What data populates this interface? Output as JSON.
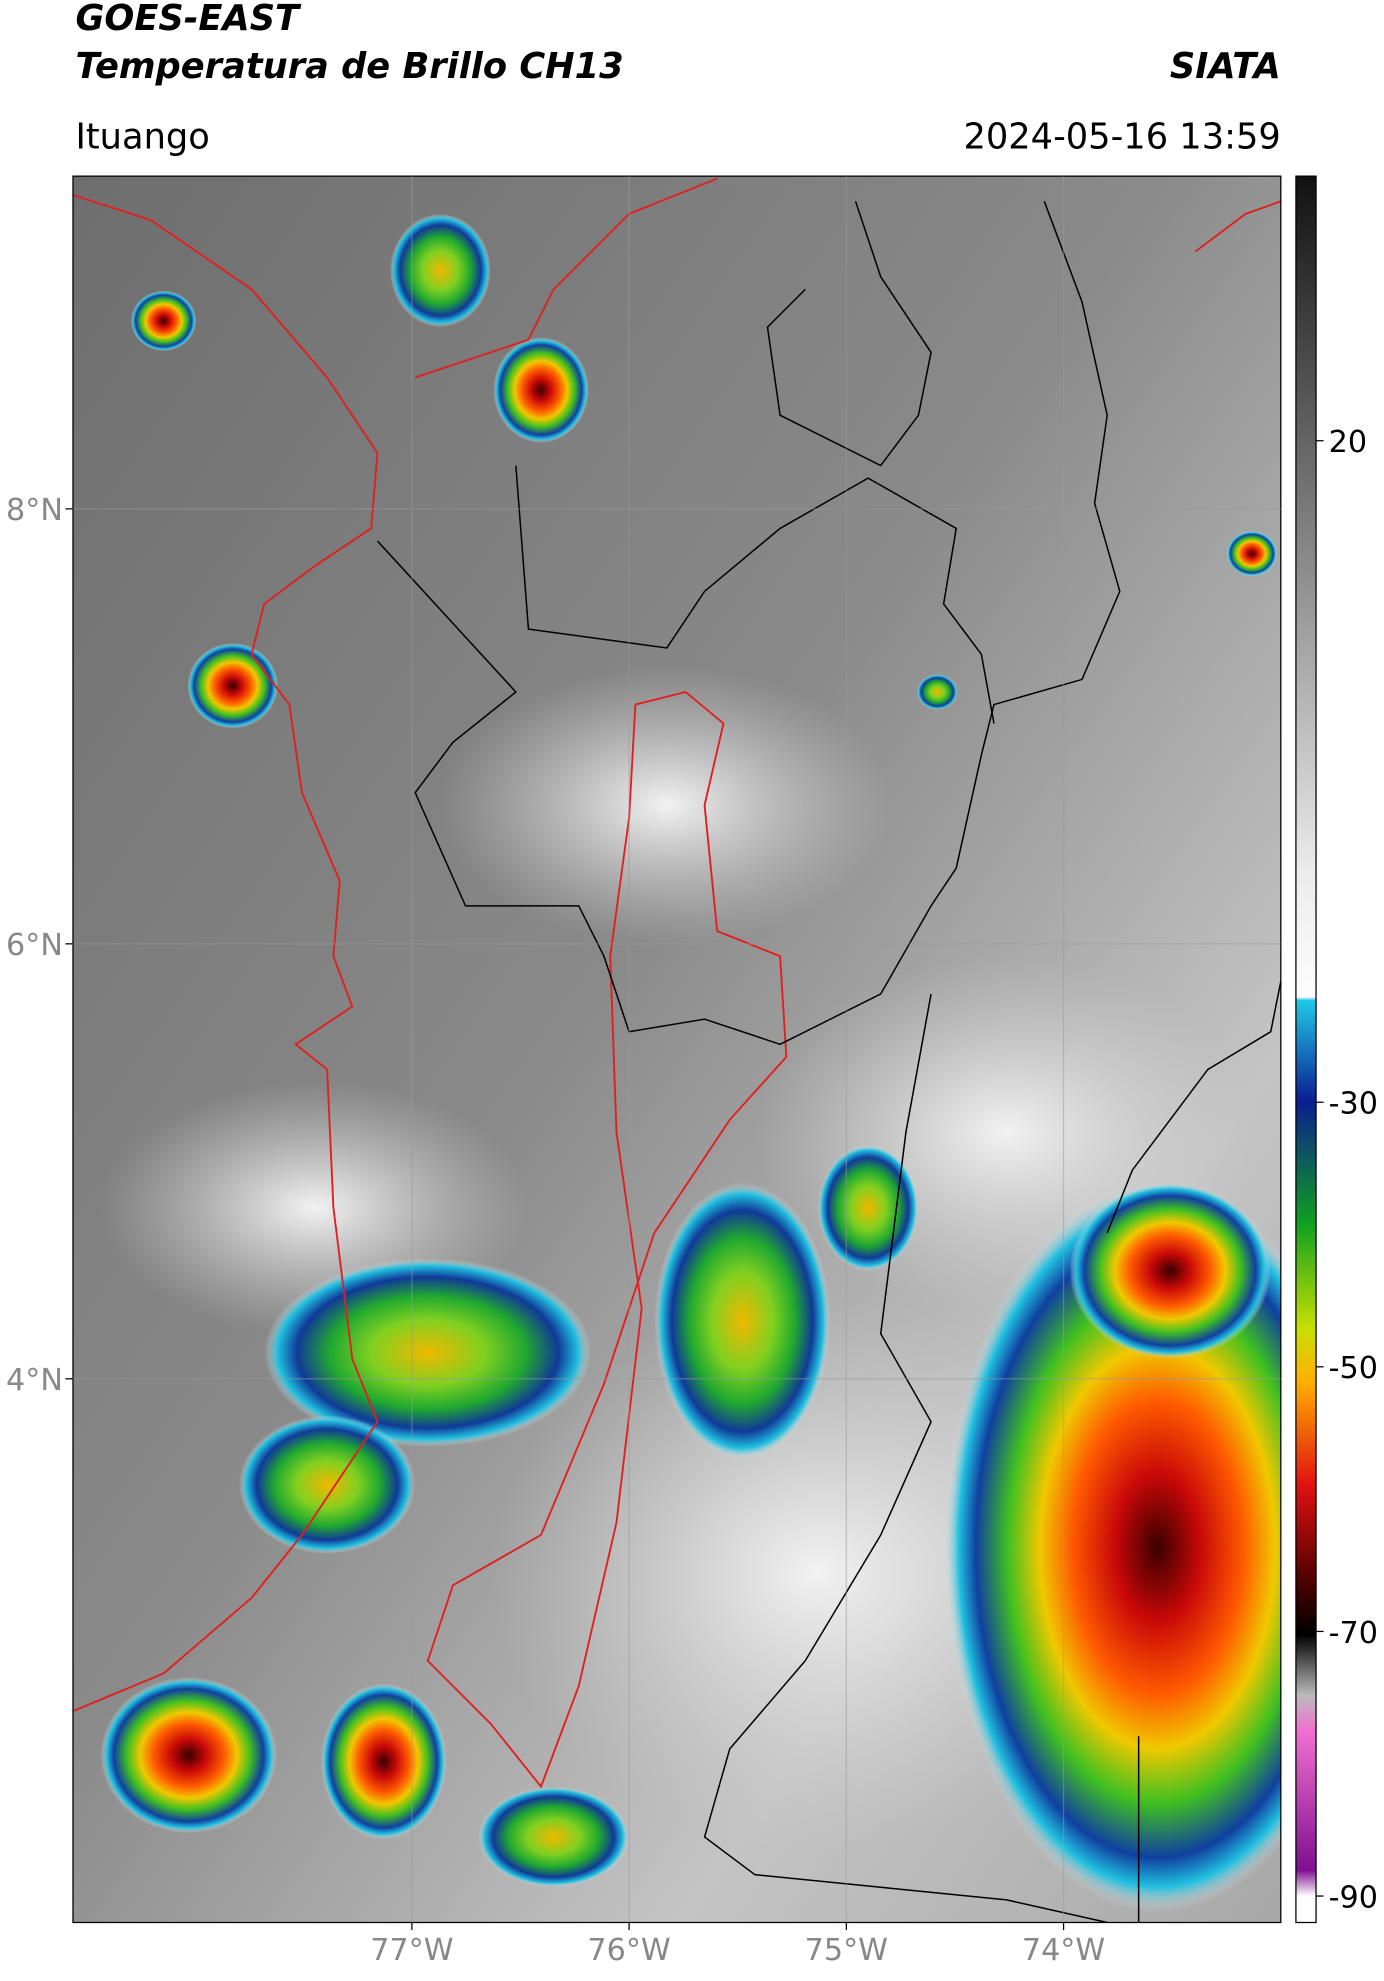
{
  "header": {
    "title": "GOES-EAST",
    "subtitle": "Temperatura de Brillo CH13",
    "source": "SIATA",
    "location": "Ituango",
    "datetime": "2024-05-16 13:59"
  },
  "map": {
    "xlim": [
      -78.56,
      -73.0
    ],
    "ylim": [
      1.5,
      9.53
    ],
    "xticks": [
      {
        "value": -77,
        "label": "77°W"
      },
      {
        "value": -76,
        "label": "76°W"
      },
      {
        "value": -75,
        "label": "75°W"
      },
      {
        "value": -74,
        "label": "74°W"
      }
    ],
    "yticks": [
      {
        "value": 8,
        "label": "8°N"
      },
      {
        "value": 6,
        "label": "6°N"
      },
      {
        "value": 4,
        "label": "4°N"
      }
    ],
    "grid": true
  },
  "colorbar": {
    "lim": [
      -92,
      40
    ],
    "ticks": [
      20,
      -30,
      -50,
      -70,
      -90
    ]
  }
}
